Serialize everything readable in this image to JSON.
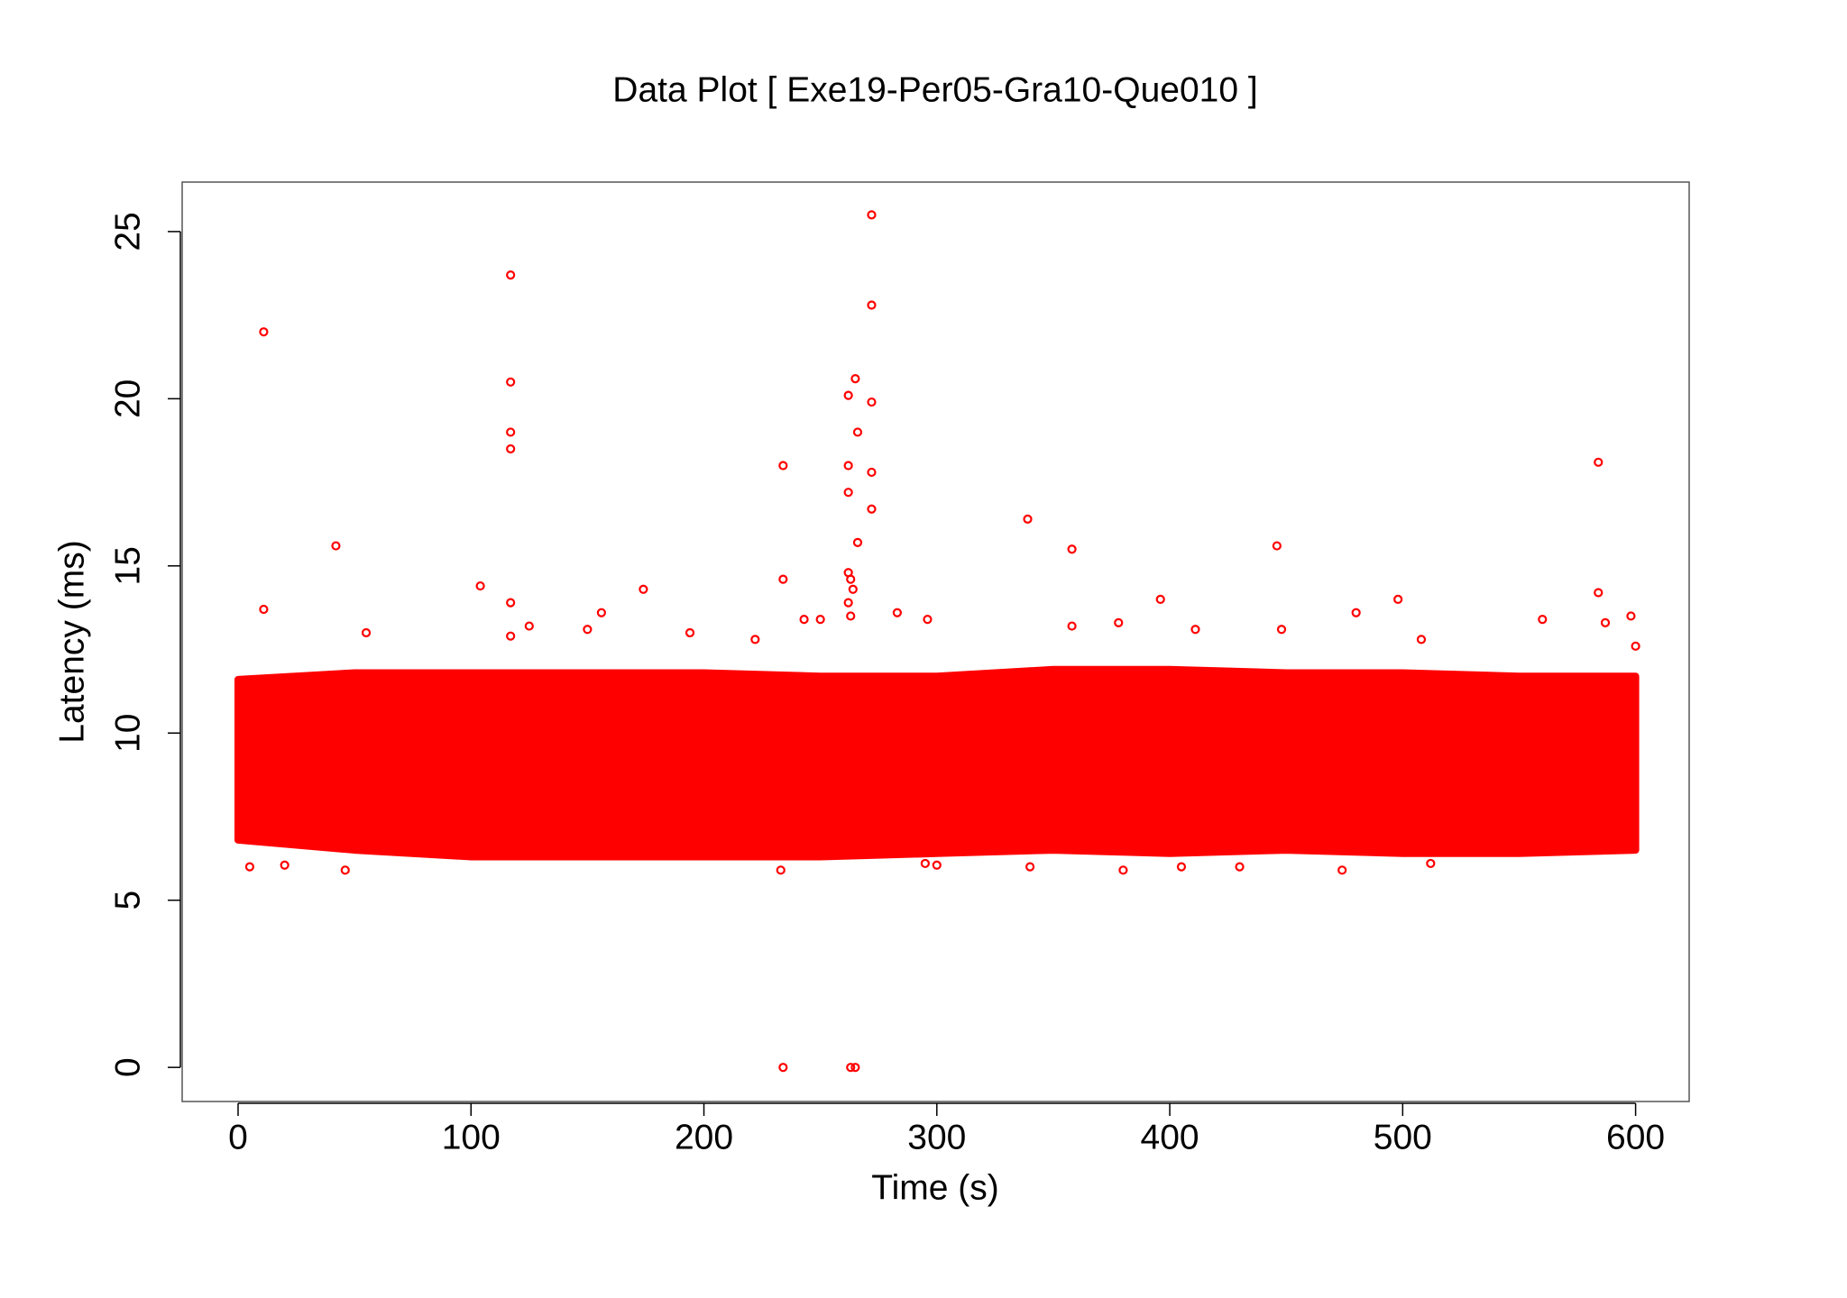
{
  "chart_data": {
    "type": "scatter",
    "title": "Data Plot [ Exe19-Per05-Gra10-Que010 ]",
    "x_label": "Time (s)",
    "y_label": "Latency (ms)",
    "color": "#ff0000",
    "xlim": [
      -24,
      623
    ],
    "ylim": [
      -1.02,
      26.48
    ],
    "xticks": [
      0,
      100,
      200,
      300,
      400,
      500,
      600
    ],
    "yticks": [
      0,
      5,
      10,
      15,
      20,
      25
    ],
    "x": [
      11,
      117,
      117,
      117,
      117,
      117,
      117,
      11,
      42,
      104,
      234,
      234,
      234,
      263,
      265,
      272,
      272,
      265,
      262,
      272,
      266,
      262,
      272,
      262,
      272,
      266,
      262,
      263,
      264,
      262,
      263,
      339,
      358,
      446,
      584,
      584,
      396,
      498,
      174,
      156,
      150,
      243,
      250,
      283,
      296,
      378,
      358,
      480,
      508,
      598,
      587,
      560,
      411,
      448,
      600,
      194,
      222,
      125,
      55,
      233,
      46,
      340,
      405,
      474,
      380,
      5,
      20,
      295,
      430,
      512,
      300
    ],
    "y": [
      22,
      23.7,
      20.5,
      19,
      18.5,
      13.9,
      12.9,
      13.7,
      15.6,
      14.4,
      18,
      14.6,
      0,
      0,
      0,
      25.5,
      22.8,
      20.6,
      20.1,
      19.9,
      19,
      18,
      17.8,
      17.2,
      16.7,
      15.7,
      14.8,
      14.6,
      14.3,
      13.9,
      13.5,
      16.4,
      15.5,
      15.6,
      18.1,
      14.2,
      14,
      14,
      14.3,
      13.6,
      13.1,
      13.4,
      13.4,
      13.6,
      13.4,
      13.3,
      13.2,
      13.6,
      12.8,
      13.5,
      13.3,
      13.4,
      13.1,
      13.1,
      12.6,
      13,
      12.8,
      13.2,
      13,
      5.9,
      5.9,
      6,
      6,
      5.9,
      5.9,
      6,
      6.05,
      6.1,
      6,
      6.1,
      6.05
    ],
    "band": {
      "x": [
        0,
        50,
        100,
        150,
        200,
        250,
        300,
        350,
        400,
        450,
        500,
        550,
        600
      ],
      "low": [
        6.8,
        6.5,
        6.3,
        6.3,
        6.3,
        6.3,
        6.4,
        6.5,
        6.4,
        6.5,
        6.4,
        6.4,
        6.5
      ],
      "high": [
        11.6,
        11.8,
        11.8,
        11.8,
        11.8,
        11.7,
        11.7,
        11.9,
        11.9,
        11.8,
        11.8,
        11.7,
        11.7
      ]
    }
  }
}
